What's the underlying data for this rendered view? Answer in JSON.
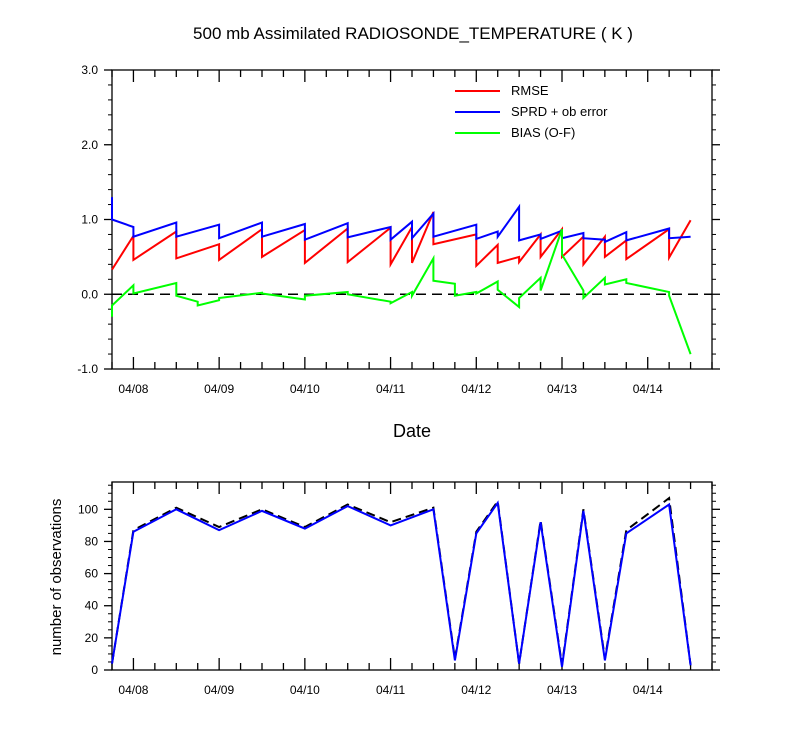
{
  "chart_data": [
    {
      "type": "line",
      "title": "500 mb Assimilated RADIOSONDE_TEMPERATURE ( K )",
      "xlabel": "Date",
      "ylabel": "",
      "xlim": [
        0,
        7
      ],
      "ylim": [
        -1.0,
        3.0
      ],
      "yticks": [
        -1.0,
        0.0,
        1.0,
        2.0,
        3.0
      ],
      "ytick_labels": [
        "-1.0",
        "0.0",
        "1.0",
        "2.0",
        "3.0"
      ],
      "xtick_labels": [
        "04/08",
        "04/09",
        "04/10",
        "04/11",
        "04/12",
        "04/13",
        "04/14"
      ],
      "legend": [
        "RMSE",
        "SPRD + ob error",
        "BIAS (O-F)"
      ],
      "colors": {
        "rmse": "#ff0000",
        "sprd": "#0000ff",
        "bias": "#00ff00",
        "zero": "#000000"
      },
      "reference_line": 0.0,
      "series": [
        {
          "name": "RMSE",
          "x": [
            0,
            0.25,
            0.25,
            0.75,
            0.75,
            1.25,
            1.25,
            1.75,
            1.75,
            2.25,
            2.25,
            2.75,
            2.75,
            3.25,
            3.25,
            3.5,
            3.5,
            3.75,
            3.75,
            4.25,
            4.25,
            4.5,
            4.5,
            4.75,
            4.75,
            5.0,
            5.0,
            5.25,
            5.25,
            5.5,
            5.5,
            5.75,
            5.75,
            6.0,
            6.0,
            6.5,
            6.5,
            6.75
          ],
          "y": [
            0.33,
            0.78,
            0.46,
            0.84,
            0.48,
            0.67,
            0.46,
            0.87,
            0.5,
            0.86,
            0.42,
            0.88,
            0.43,
            0.89,
            0.4,
            0.9,
            0.42,
            1.1,
            0.67,
            0.8,
            0.38,
            0.66,
            0.42,
            0.5,
            0.43,
            0.8,
            0.5,
            0.87,
            0.5,
            0.77,
            0.4,
            0.77,
            0.5,
            0.72,
            0.47,
            0.87,
            0.49,
            0.99
          ]
        },
        {
          "name": "SPRD + ob error",
          "x": [
            0,
            0,
            0.25,
            0.25,
            0.75,
            0.75,
            1.25,
            1.25,
            1.75,
            1.75,
            2.25,
            2.25,
            2.75,
            2.75,
            3.25,
            3.25,
            3.5,
            3.5,
            3.75,
            3.75,
            4.25,
            4.25,
            4.5,
            4.5,
            4.75,
            4.75,
            5.0,
            5.0,
            5.25,
            5.25,
            5.5,
            5.5,
            5.75,
            5.75,
            6.0,
            6.0,
            6.5,
            6.5,
            6.75
          ],
          "y": [
            1.3,
            1.0,
            0.9,
            0.77,
            0.96,
            0.77,
            0.93,
            0.75,
            0.96,
            0.77,
            0.94,
            0.73,
            0.95,
            0.76,
            0.9,
            0.73,
            0.97,
            0.75,
            1.08,
            0.77,
            0.93,
            0.74,
            0.84,
            0.77,
            1.17,
            0.72,
            0.8,
            0.74,
            0.85,
            0.75,
            0.82,
            0.75,
            0.73,
            0.7,
            0.83,
            0.72,
            0.88,
            0.75,
            0.77
          ]
        },
        {
          "name": "BIAS (O-F)",
          "x": [
            0,
            0,
            0.25,
            0.25,
            0.75,
            0.75,
            1.0,
            1.0,
            1.25,
            1.25,
            1.75,
            1.75,
            2.25,
            2.25,
            2.75,
            2.75,
            3.25,
            3.25,
            3.5,
            3.5,
            3.75,
            3.75,
            4.0,
            4.0,
            4.25,
            4.25,
            4.5,
            4.5,
            4.75,
            4.75,
            5.0,
            5.0,
            5.25,
            5.25,
            5.5,
            5.5,
            5.75,
            5.75,
            6.0,
            6.0,
            6.5,
            6.5,
            6.75
          ],
          "y": [
            -0.3,
            -0.15,
            0.12,
            0.01,
            0.15,
            -0.02,
            -0.1,
            -0.15,
            -0.08,
            -0.05,
            0.02,
            0.01,
            -0.07,
            -0.02,
            0.03,
            0.0,
            -0.1,
            -0.12,
            0.03,
            -0.02,
            0.48,
            0.18,
            0.14,
            -0.02,
            0.03,
            0.01,
            0.17,
            0.06,
            -0.17,
            -0.05,
            0.22,
            0.05,
            0.87,
            0.53,
            0.05,
            -0.05,
            0.22,
            0.13,
            0.2,
            0.15,
            0.03,
            -0.02,
            -0.8
          ]
        }
      ]
    },
    {
      "type": "line",
      "title": "",
      "xlabel": "",
      "ylabel": "number of observations",
      "xlim": [
        0,
        7
      ],
      "ylim": [
        0,
        117
      ],
      "yticks": [
        0,
        20,
        40,
        60,
        80,
        100
      ],
      "ytick_labels": [
        "0",
        "20",
        "40",
        "60",
        "80",
        "100"
      ],
      "xtick_labels": [
        "04/08",
        "04/09",
        "04/10",
        "04/11",
        "04/12",
        "04/13",
        "04/14"
      ],
      "colors": {
        "used": "#0000ff",
        "possible": "#000000"
      },
      "series": [
        {
          "name": "possible",
          "style": "dashed",
          "x": [
            0,
            0.25,
            0.75,
            1.25,
            1.75,
            2.25,
            2.75,
            3.25,
            3.75,
            4.0,
            4.25,
            4.5,
            4.75,
            5.0,
            5.25,
            5.5,
            5.75,
            6.0,
            6.5,
            6.75
          ],
          "y": [
            4,
            87,
            101,
            89,
            100,
            89,
            103,
            92,
            101,
            7,
            86,
            105,
            4,
            93,
            3,
            100,
            7,
            87,
            107,
            3
          ]
        },
        {
          "name": "used",
          "style": "solid",
          "x": [
            0,
            0.25,
            0.75,
            1.25,
            1.75,
            2.25,
            2.75,
            3.25,
            3.75,
            4.0,
            4.25,
            4.5,
            4.75,
            5.0,
            5.25,
            5.5,
            5.75,
            6.0,
            6.5,
            6.75
          ],
          "y": [
            4,
            86,
            100,
            87,
            99,
            88,
            102,
            90,
            100,
            6,
            85,
            104,
            4,
            92,
            2,
            99,
            6,
            85,
            103,
            3
          ]
        }
      ]
    }
  ]
}
